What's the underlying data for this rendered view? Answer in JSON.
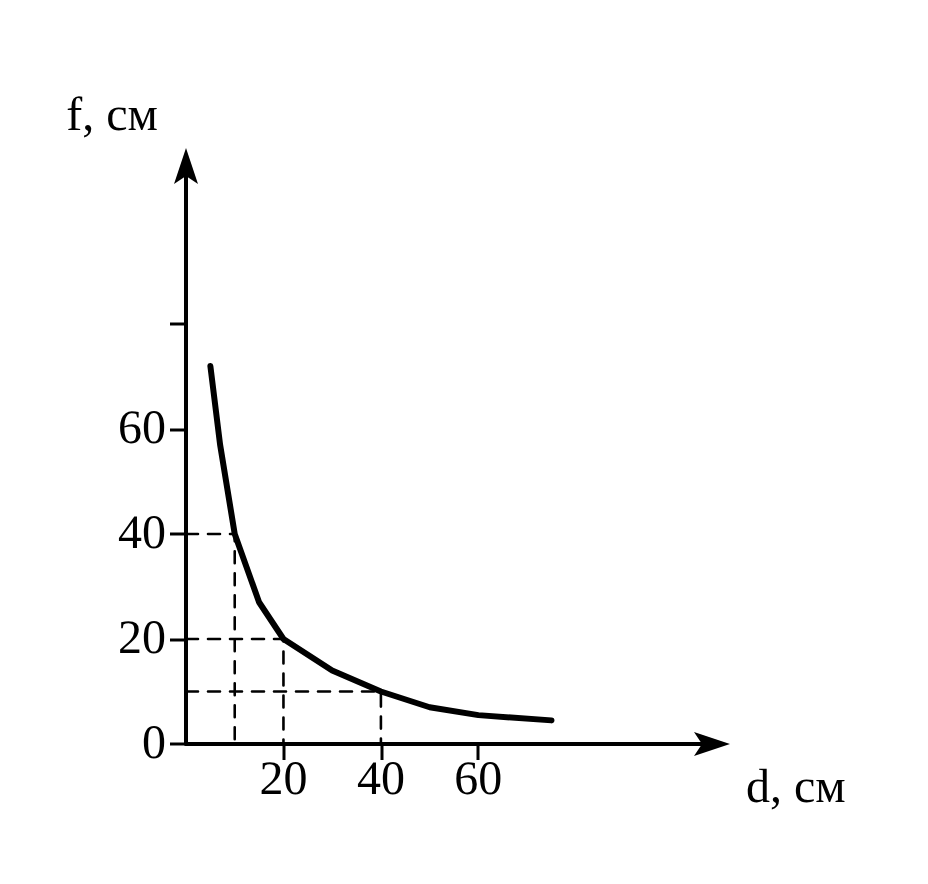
{
  "chart_data": {
    "type": "line",
    "xlabel": "d, см",
    "ylabel": "f, см",
    "xlim": [
      0,
      110
    ],
    "xticks": [
      20,
      40,
      60
    ],
    "ylim": [
      0,
      112
    ],
    "yticks": [
      0,
      20,
      40,
      60,
      {
        "value": 80,
        "label": null
      }
    ],
    "grid": false,
    "marker": "none",
    "tick_labels": "xy",
    "series": [
      {
        "color": "#000000",
        "line_style": "solid",
        "x": [
          5,
          7,
          10,
          15,
          20,
          30,
          40,
          50,
          60,
          75
        ],
        "values": [
          72,
          57,
          40,
          27,
          20,
          14,
          10,
          7,
          5.5,
          4.5
        ]
      },
      {
        "color": "#000000",
        "line_style": "dashed",
        "x": [
          0,
          10,
          10
        ],
        "values": [
          40,
          40,
          0
        ]
      },
      {
        "color": "#000000",
        "line_style": "dashed",
        "x": [
          0,
          20,
          20
        ],
        "values": [
          20,
          20,
          0
        ]
      },
      {
        "color": "#000000",
        "line_style": "dashed",
        "x": [
          0,
          40,
          40
        ],
        "values": [
          10,
          10,
          0
        ]
      }
    ]
  }
}
